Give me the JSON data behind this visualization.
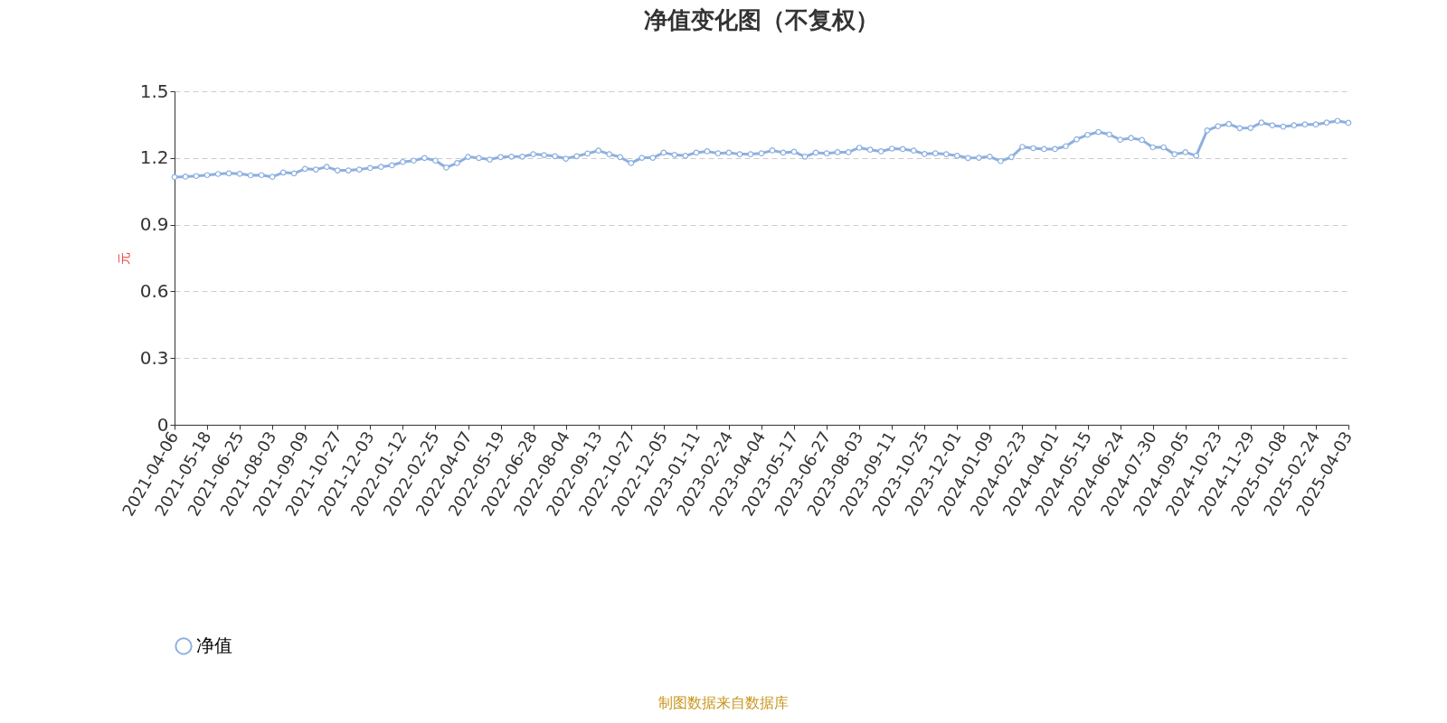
{
  "chart_data": {
    "type": "line",
    "title": "净值变化图（不复权）",
    "ylabel": "元",
    "annotations": [
      "制图数据来自数据库"
    ],
    "categories": [
      "2021-04-06",
      null,
      null,
      "2021-05-18",
      null,
      null,
      "2021-06-25",
      null,
      null,
      "2021-08-03",
      null,
      null,
      "2021-09-09",
      null,
      null,
      "2021-10-27",
      null,
      null,
      "2021-12-03",
      null,
      null,
      "2022-01-12",
      null,
      null,
      "2022-02-25",
      null,
      null,
      "2022-04-07",
      null,
      null,
      "2022-05-19",
      null,
      null,
      "2022-06-28",
      null,
      null,
      "2022-08-04",
      null,
      null,
      "2022-09-13",
      null,
      null,
      "2022-10-27",
      null,
      null,
      "2022-12-05",
      null,
      null,
      "2023-01-11",
      null,
      null,
      "2023-02-24",
      null,
      null,
      "2023-04-04",
      null,
      null,
      "2023-05-17",
      null,
      null,
      "2023-06-27",
      null,
      null,
      "2023-08-03",
      null,
      null,
      "2023-09-11",
      null,
      null,
      "2023-10-25",
      null,
      null,
      "2023-12-01",
      null,
      null,
      "2024-01-09",
      null,
      null,
      "2024-02-23",
      null,
      null,
      "2024-04-01",
      null,
      null,
      "2024-05-15",
      null,
      null,
      "2024-06-24",
      null,
      null,
      "2024-07-30",
      null,
      null,
      "2024-09-05",
      null,
      null,
      "2024-10-23",
      null,
      null,
      "2024-11-29",
      null,
      null,
      "2025-01-08",
      null,
      null,
      "2025-02-24",
      null,
      null,
      "2025-04-03"
    ],
    "series": [
      {
        "name": "净值",
        "color": "#8eb0e0",
        "values": [
          1.114,
          1.116,
          1.119,
          1.123,
          1.128,
          1.131,
          1.129,
          1.122,
          1.123,
          1.115,
          1.135,
          1.131,
          1.151,
          1.148,
          1.16,
          1.144,
          1.144,
          1.148,
          1.155,
          1.16,
          1.167,
          1.182,
          1.188,
          1.2,
          1.188,
          1.157,
          1.177,
          1.205,
          1.2,
          1.193,
          1.204,
          1.206,
          1.206,
          1.217,
          1.213,
          1.208,
          1.197,
          1.208,
          1.22,
          1.233,
          1.217,
          1.204,
          1.177,
          1.201,
          1.201,
          1.224,
          1.214,
          1.21,
          1.224,
          1.23,
          1.221,
          1.224,
          1.217,
          1.217,
          1.221,
          1.234,
          1.224,
          1.228,
          1.206,
          1.224,
          1.221,
          1.226,
          1.226,
          1.246,
          1.237,
          1.23,
          1.242,
          1.24,
          1.233,
          1.218,
          1.221,
          1.217,
          1.21,
          1.2,
          1.201,
          1.206,
          1.186,
          1.204,
          1.25,
          1.244,
          1.24,
          1.24,
          1.253,
          1.284,
          1.304,
          1.317,
          1.306,
          1.282,
          1.29,
          1.281,
          1.248,
          1.248,
          1.217,
          1.226,
          1.21,
          1.324,
          1.343,
          1.353,
          1.334,
          1.335,
          1.359,
          1.347,
          1.341,
          1.347,
          1.351,
          1.351,
          1.359,
          1.367,
          1.358
        ]
      }
    ],
    "ylim": [
      0,
      1.5
    ],
    "yticks": [
      0,
      0.3,
      0.6,
      0.9,
      1.2,
      1.5
    ],
    "grid": "y",
    "legend": "bottom",
    "marker": "circle",
    "line_style": "solid"
  }
}
